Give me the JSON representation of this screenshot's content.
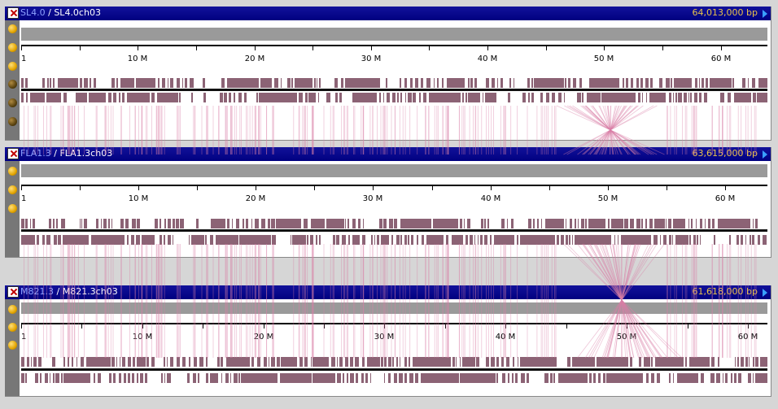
{
  "tracks": [
    {
      "genome": "SL4.0",
      "separator": "/",
      "chromosome": "SL4.0ch03",
      "size_label": "64,013,000 bp",
      "length_mb": 64.013,
      "ruler_labels": [
        "1",
        "10 M",
        "20 M",
        "30 M",
        "40 M",
        "50 M",
        "60 M"
      ],
      "tool_buttons": [
        "on",
        "on",
        "on",
        "off",
        "off",
        "off"
      ]
    },
    {
      "genome": "FLA1.3",
      "separator": "/",
      "chromosome": "FLA1.3ch03",
      "size_label": "63,615,000 bp",
      "length_mb": 63.615,
      "ruler_labels": [
        "1",
        "10 M",
        "20 M",
        "30 M",
        "40 M",
        "50 M",
        "60 M"
      ],
      "tool_buttons": [
        "on",
        "on",
        "on"
      ]
    },
    {
      "genome": "M821.3",
      "separator": "/",
      "chromosome": "M821.3ch03",
      "size_label": "61,618,000 bp",
      "length_mb": 61.618,
      "ruler_labels": [
        "1",
        "10 M",
        "20 M",
        "30 M",
        "40 M",
        "50 M",
        "60 M"
      ],
      "tool_buttons": [
        "on",
        "on",
        "on"
      ]
    }
  ],
  "colors": {
    "title_bar": "#000080",
    "genome_name": "#8ea2ff",
    "size_label": "#e8c24a",
    "feature": "#8c6375",
    "synteny_link": "#d97fa6"
  }
}
